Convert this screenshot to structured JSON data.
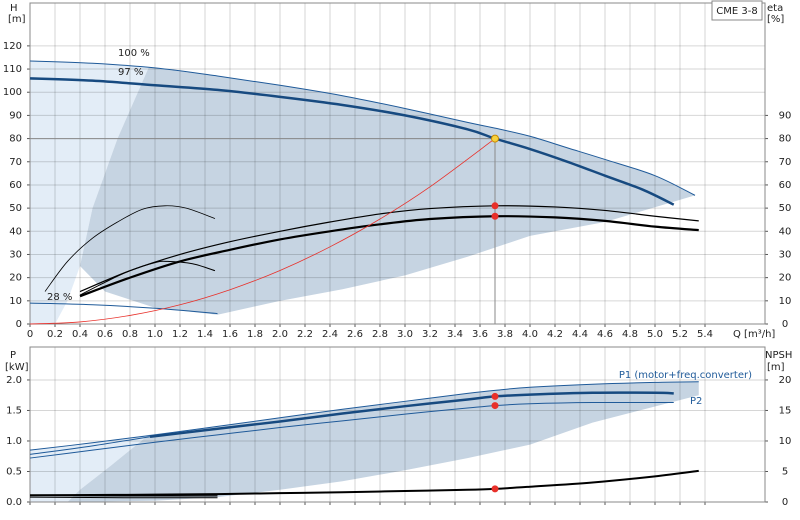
{
  "chart_data": [
    {
      "type": "line",
      "y_label": "H",
      "y_unit": "[m]",
      "y2_label": "eta",
      "y2_unit": "[%]",
      "x_label": "Q [m³/h]",
      "annotation": "CME 3-8",
      "xlim": [
        0,
        5.88
      ],
      "ylim": [
        0,
        138.5
      ],
      "y2lim": [
        0,
        138.5
      ],
      "grid": true,
      "xticks": [
        0,
        0.2,
        0.4,
        0.6,
        0.8,
        {
          "value": 1,
          "label": "1.0"
        },
        1.2,
        1.4,
        1.6,
        1.8,
        {
          "value": 2,
          "label": "2.0"
        },
        2.2,
        2.4,
        2.6,
        2.8,
        {
          "value": 3,
          "label": "3.0"
        },
        3.2,
        3.4,
        3.6,
        3.8,
        {
          "value": 4,
          "label": "4.0"
        },
        4.2,
        4.4,
        4.6,
        4.8,
        {
          "value": 5,
          "label": "5.0"
        },
        5.2,
        5.4
      ],
      "yticks": [
        0,
        10,
        20,
        30,
        40,
        50,
        60,
        70,
        80,
        90,
        100,
        110,
        120
      ],
      "y2ticks": [
        0,
        10,
        20,
        30,
        40,
        50,
        60,
        70,
        80,
        90
      ],
      "areas": [
        {
          "color": "#e3edf7",
          "x": [
            0,
            0.5,
            0.95,
            0.7,
            0.5,
            0.4,
            0.3,
            0.2,
            0
          ],
          "values": [
            113.5,
            112.5,
            110.7,
            80,
            50,
            25,
            10,
            0,
            0
          ]
        },
        {
          "color": "#c6d4e2",
          "x": [
            0.95,
            1.5,
            2,
            2.5,
            3,
            3.5,
            4,
            4.6,
            5,
            5.32,
            4.6,
            4,
            3.5,
            3,
            2.5,
            2,
            1.5,
            1,
            0.6,
            0.4,
            0.5,
            0.7,
            0.95
          ],
          "values": [
            110.7,
            107,
            103,
            98.5,
            93,
            87,
            81,
            71,
            64,
            55.5,
            44,
            38,
            29,
            21,
            15,
            10,
            4,
            7,
            14,
            25,
            50,
            80,
            110.7
          ]
        }
      ],
      "series": [
        {
          "name": "100 %",
          "color": "#1f5a99",
          "width": 1,
          "x": [
            0,
            0.5,
            1,
            1.5,
            2,
            2.5,
            3,
            3.5,
            3.72,
            4,
            4.3,
            4.6,
            5,
            5.32
          ],
          "values": [
            113.5,
            112.5,
            110.5,
            107,
            103,
            98.5,
            93,
            87,
            84.5,
            81,
            76,
            71,
            64,
            55.5
          ]
        },
        {
          "name": "97 %",
          "color": "#174a80",
          "width": 2.5,
          "x": [
            0,
            0.5,
            1,
            1.5,
            2,
            2.5,
            3,
            3.5,
            3.72,
            4,
            4.3,
            4.6,
            4.9,
            5.15
          ],
          "values": [
            106,
            105,
            103,
            101,
            98,
            94.5,
            90,
            84,
            80,
            75.5,
            70,
            64,
            58,
            51.5
          ]
        },
        {
          "name": "28 %",
          "color": "#1f5a99",
          "width": 1,
          "x": [
            0,
            0.5,
            1,
            1.5
          ],
          "values": [
            9,
            8.3,
            6.8,
            4.5
          ]
        },
        {
          "color": "#000000",
          "width": 2.2,
          "axis": "y2",
          "x": [
            0.4,
            0.8,
            1.2,
            1.6,
            2,
            2.4,
            2.8,
            3.2,
            3.72,
            4.2,
            4.6,
            5,
            5.35
          ],
          "values": [
            12,
            20,
            27,
            32,
            36.5,
            40,
            43,
            45.3,
            46.5,
            46,
            44.5,
            42,
            40.5
          ]
        },
        {
          "color": "#000000",
          "width": 1.2,
          "axis": "y2",
          "x": [
            0.4,
            0.8,
            1.2,
            1.6,
            2,
            2.4,
            2.8,
            3.2,
            3.72,
            4.2,
            4.6,
            5,
            5.35
          ],
          "values": [
            14,
            23,
            30,
            35.5,
            40,
            44,
            47.5,
            49.8,
            51,
            50.5,
            49,
            46.5,
            44.5
          ]
        },
        {
          "color": "#000000",
          "width": 0.8,
          "axis": "y2",
          "x": [
            0.12,
            0.3,
            0.5,
            0.7,
            0.9,
            1.08,
            1.25,
            1.48
          ],
          "values": [
            14,
            27,
            37,
            44,
            49.5,
            51,
            50,
            45.5
          ]
        },
        {
          "color": "#000000",
          "width": 1,
          "axis": "y2",
          "x": [
            0.4,
            0.6,
            0.8,
            1,
            1.1,
            1.3,
            1.48
          ],
          "values": [
            12.5,
            18,
            23,
            26.5,
            27,
            26,
            23
          ]
        },
        {
          "color": "#e8302a",
          "width": 0.8,
          "x": [
            0,
            0.4,
            0.8,
            1.2,
            1.6,
            2,
            2.4,
            2.8,
            3.2,
            3.72
          ],
          "values": [
            0,
            0.9,
            3.7,
            8.3,
            14.8,
            23.1,
            33.3,
            45.3,
            59.2,
            80
          ]
        }
      ],
      "markers": [
        {
          "x": 3.72,
          "value": 80,
          "color": "#f7d23e",
          "guide": true
        },
        {
          "x": 3.72,
          "value": 51,
          "color": "#e8302a",
          "axis": "y2"
        },
        {
          "x": 3.72,
          "value": 46.5,
          "color": "#e8302a",
          "axis": "y2"
        }
      ]
    },
    {
      "type": "line",
      "y_label": "P",
      "y_unit": "[kW]",
      "y2_label": "NPSH",
      "y2_unit": "[m]",
      "xlim": [
        0,
        5.88
      ],
      "ylim": [
        0,
        2.54
      ],
      "y2lim": [
        0,
        25.4
      ],
      "grid": true,
      "yticks": [
        {
          "value": 0,
          "label": "0.0"
        },
        0.5,
        {
          "value": 1,
          "label": "1.0"
        },
        1.5,
        {
          "value": 2,
          "label": "2.0"
        }
      ],
      "y2ticks": [
        0,
        5,
        10,
        15,
        20
      ],
      "areas": [
        {
          "color": "#e3edf7",
          "x": [
            0,
            0.5,
            0.95,
            0.65,
            0.4,
            0.3,
            0
          ],
          "values": [
            0.85,
            0.97,
            1.1,
            0.6,
            0.2,
            0,
            0
          ]
        },
        {
          "color": "#c6d4e2",
          "x": [
            0.95,
            1.5,
            2,
            2.5,
            3,
            3.5,
            4,
            4.5,
            5,
            5.35,
            5.35,
            4.5,
            4,
            3.5,
            3,
            2.5,
            2,
            1.5,
            1,
            0.3,
            0.4,
            0.65,
            0.95
          ],
          "values": [
            1.1,
            1.24,
            1.38,
            1.52,
            1.65,
            1.78,
            1.88,
            1.93,
            1.96,
            1.97,
            1.75,
            1.3,
            0.94,
            0.72,
            0.52,
            0.34,
            0.2,
            0.08,
            0.02,
            0,
            0.2,
            0.6,
            1.1
          ]
        }
      ],
      "series": [
        {
          "color": "#1f5a99",
          "width": 1,
          "x": [
            0,
            0.5,
            1,
            1.5,
            2,
            2.5,
            3,
            3.5,
            3.72,
            4,
            4.5,
            5,
            5.35
          ],
          "values": [
            0.85,
            0.97,
            1.1,
            1.24,
            1.38,
            1.52,
            1.65,
            1.78,
            1.83,
            1.88,
            1.93,
            1.96,
            1.97
          ]
        },
        {
          "color": "#1f5a99",
          "width": 1,
          "x": [
            0,
            0.5,
            0.96
          ],
          "values": [
            0.78,
            0.92,
            1.07
          ]
        },
        {
          "name": "P1 (motor+freq.converter)",
          "color": "#174a80",
          "width": 2.5,
          "x": [
            0.96,
            1.5,
            2,
            2.5,
            3,
            3.5,
            3.72,
            4,
            4.5,
            5,
            5.15
          ],
          "values": [
            1.07,
            1.2,
            1.32,
            1.45,
            1.57,
            1.68,
            1.73,
            1.76,
            1.79,
            1.79,
            1.78
          ]
        },
        {
          "name": "P2",
          "color": "#1f5a99",
          "width": 1,
          "x": [
            0,
            0.5,
            1,
            1.5,
            2,
            2.5,
            3,
            3.5,
            3.72,
            4,
            4.5,
            5.15
          ],
          "values": [
            0.72,
            0.85,
            0.98,
            1.1,
            1.22,
            1.33,
            1.44,
            1.54,
            1.58,
            1.61,
            1.63,
            1.63
          ]
        },
        {
          "color": "#000000",
          "width": 2,
          "axis": "y2",
          "x": [
            0,
            0.5,
            1,
            1.5,
            2,
            2.5,
            3,
            3.5,
            3.72,
            4,
            4.5,
            5,
            5.35
          ],
          "values": [
            1.1,
            1.15,
            1.2,
            1.3,
            1.45,
            1.6,
            1.8,
            2,
            2.15,
            2.5,
            3.2,
            4.2,
            5.1
          ]
        },
        {
          "color": "#000000",
          "width": 1.2,
          "x": [
            0,
            0.75,
            1.5
          ],
          "values": [
            0.11,
            0.1,
            0.1
          ]
        },
        {
          "color": "#000000",
          "width": 1,
          "x": [
            0,
            0.75,
            1.5
          ],
          "values": [
            0.08,
            0.07,
            0.07
          ]
        }
      ],
      "markers": [
        {
          "x": 3.72,
          "value": 1.73,
          "color": "#e8302a"
        },
        {
          "x": 3.72,
          "value": 1.58,
          "color": "#e8302a"
        },
        {
          "x": 3.72,
          "value": 2.15,
          "color": "#e8302a",
          "axis": "y2"
        }
      ]
    }
  ]
}
